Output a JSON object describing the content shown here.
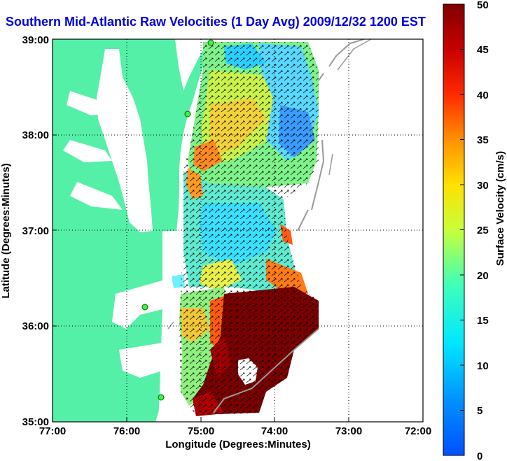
{
  "title": "Southern Mid-Atlantic Raw Velocities (1 Day Avg) 2009/12/32 1200 EST",
  "map": {
    "xlabel": "Longitude (Degrees:Minutes)",
    "ylabel": "Latitude (Degrees:Minutes)",
    "x_ticks": [
      "77:00",
      "76:00",
      "75:00",
      "74:00",
      "73:00",
      "72:00"
    ],
    "y_ticks": [
      "39:00",
      "38:00",
      "37:00",
      "36:00",
      "35:00"
    ],
    "lon_range": [
      -77,
      -72
    ],
    "lat_range": [
      35,
      39
    ],
    "grid": true,
    "land_color": "#55f0a8",
    "water_color": "#ffffff"
  },
  "colorbar": {
    "label": "Surface Velocity (cm/s)",
    "ticks": [
      "0",
      "5",
      "10",
      "15",
      "20",
      "25",
      "30",
      "35",
      "40",
      "45",
      "50"
    ],
    "range": [
      0,
      50
    ],
    "colormap": "jet"
  }
}
